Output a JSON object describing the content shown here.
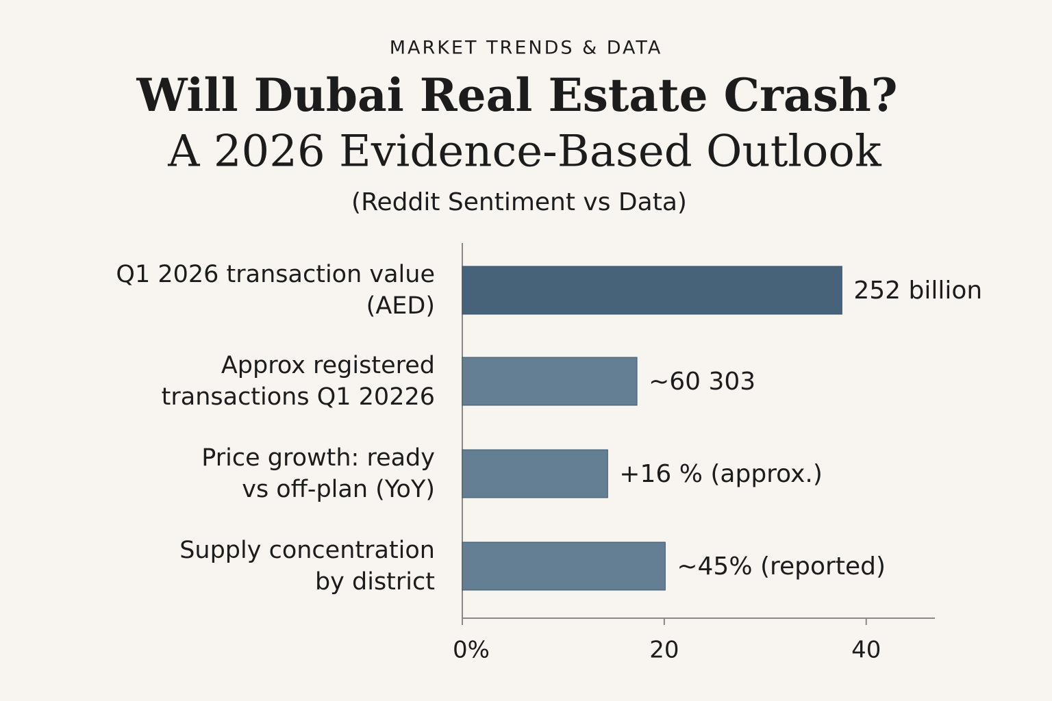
{
  "chart_data": {
    "type": "barh",
    "kicker": "MARKET TRENDS & DATA",
    "title": "Will Dubai Real Estate Crash?",
    "title_line2": "A 2026 Evidence-Based Outlook",
    "subtitle": "(Reddit Sentiment vs Data)",
    "categories": [
      "Q1 2026 transaction value\n(AED)",
      "Approx registered\ntransactions Q1 20226",
      "Price growth: ready\nvs off-plan (YoY)",
      "Supply concentration\nby district"
    ],
    "values": [
      37.6,
      17.3,
      14.4,
      20.1
    ],
    "annotations": [
      "252 billion",
      "~60 303",
      "+16 % (approx.)",
      "~45% (reported)"
    ],
    "colors": [
      "#46637a",
      "#647f93",
      "#647f93",
      "#647f93"
    ],
    "xlim": [
      0,
      46.8
    ],
    "xticks": [
      {
        "value": 0,
        "label": "0%"
      },
      20,
      40
    ]
  }
}
